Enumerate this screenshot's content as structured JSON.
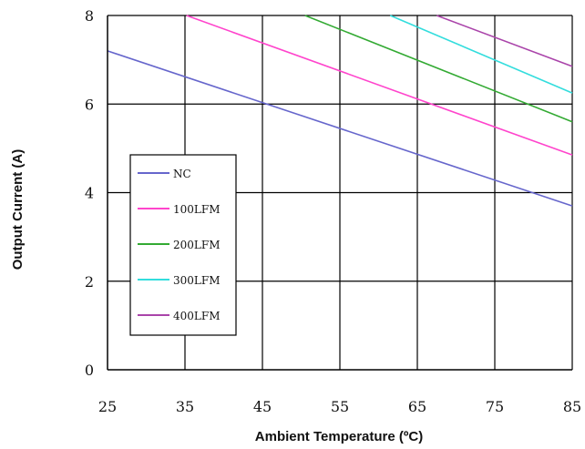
{
  "chart_data": {
    "type": "line",
    "title": "",
    "xlabel": "Ambient Temperature (ºC)",
    "ylabel": "Output Current (A)",
    "xlim": [
      25,
      85
    ],
    "ylim": [
      0,
      8
    ],
    "x_ticks": [
      25,
      35,
      45,
      55,
      65,
      75,
      85
    ],
    "y_ticks": [
      0,
      2,
      4,
      6,
      8
    ],
    "grid": true,
    "legend_position": "left-middle",
    "series": [
      {
        "name": "NC",
        "color": "#6666cc",
        "x": [
          25,
          85
        ],
        "y": [
          7.2,
          3.7
        ]
      },
      {
        "name": "100LFM",
        "color": "#ff44cc",
        "x": [
          35.2,
          85
        ],
        "y": [
          8.0,
          4.85
        ]
      },
      {
        "name": "200LFM",
        "color": "#33aa33",
        "x": [
          50.5,
          85
        ],
        "y": [
          8.0,
          5.6
        ]
      },
      {
        "name": "300LFM",
        "color": "#33dddd",
        "x": [
          61.5,
          85
        ],
        "y": [
          8.0,
          6.25
        ]
      },
      {
        "name": "400LFM",
        "color": "#aa44aa",
        "x": [
          67.5,
          85
        ],
        "y": [
          8.0,
          6.85
        ]
      }
    ]
  }
}
